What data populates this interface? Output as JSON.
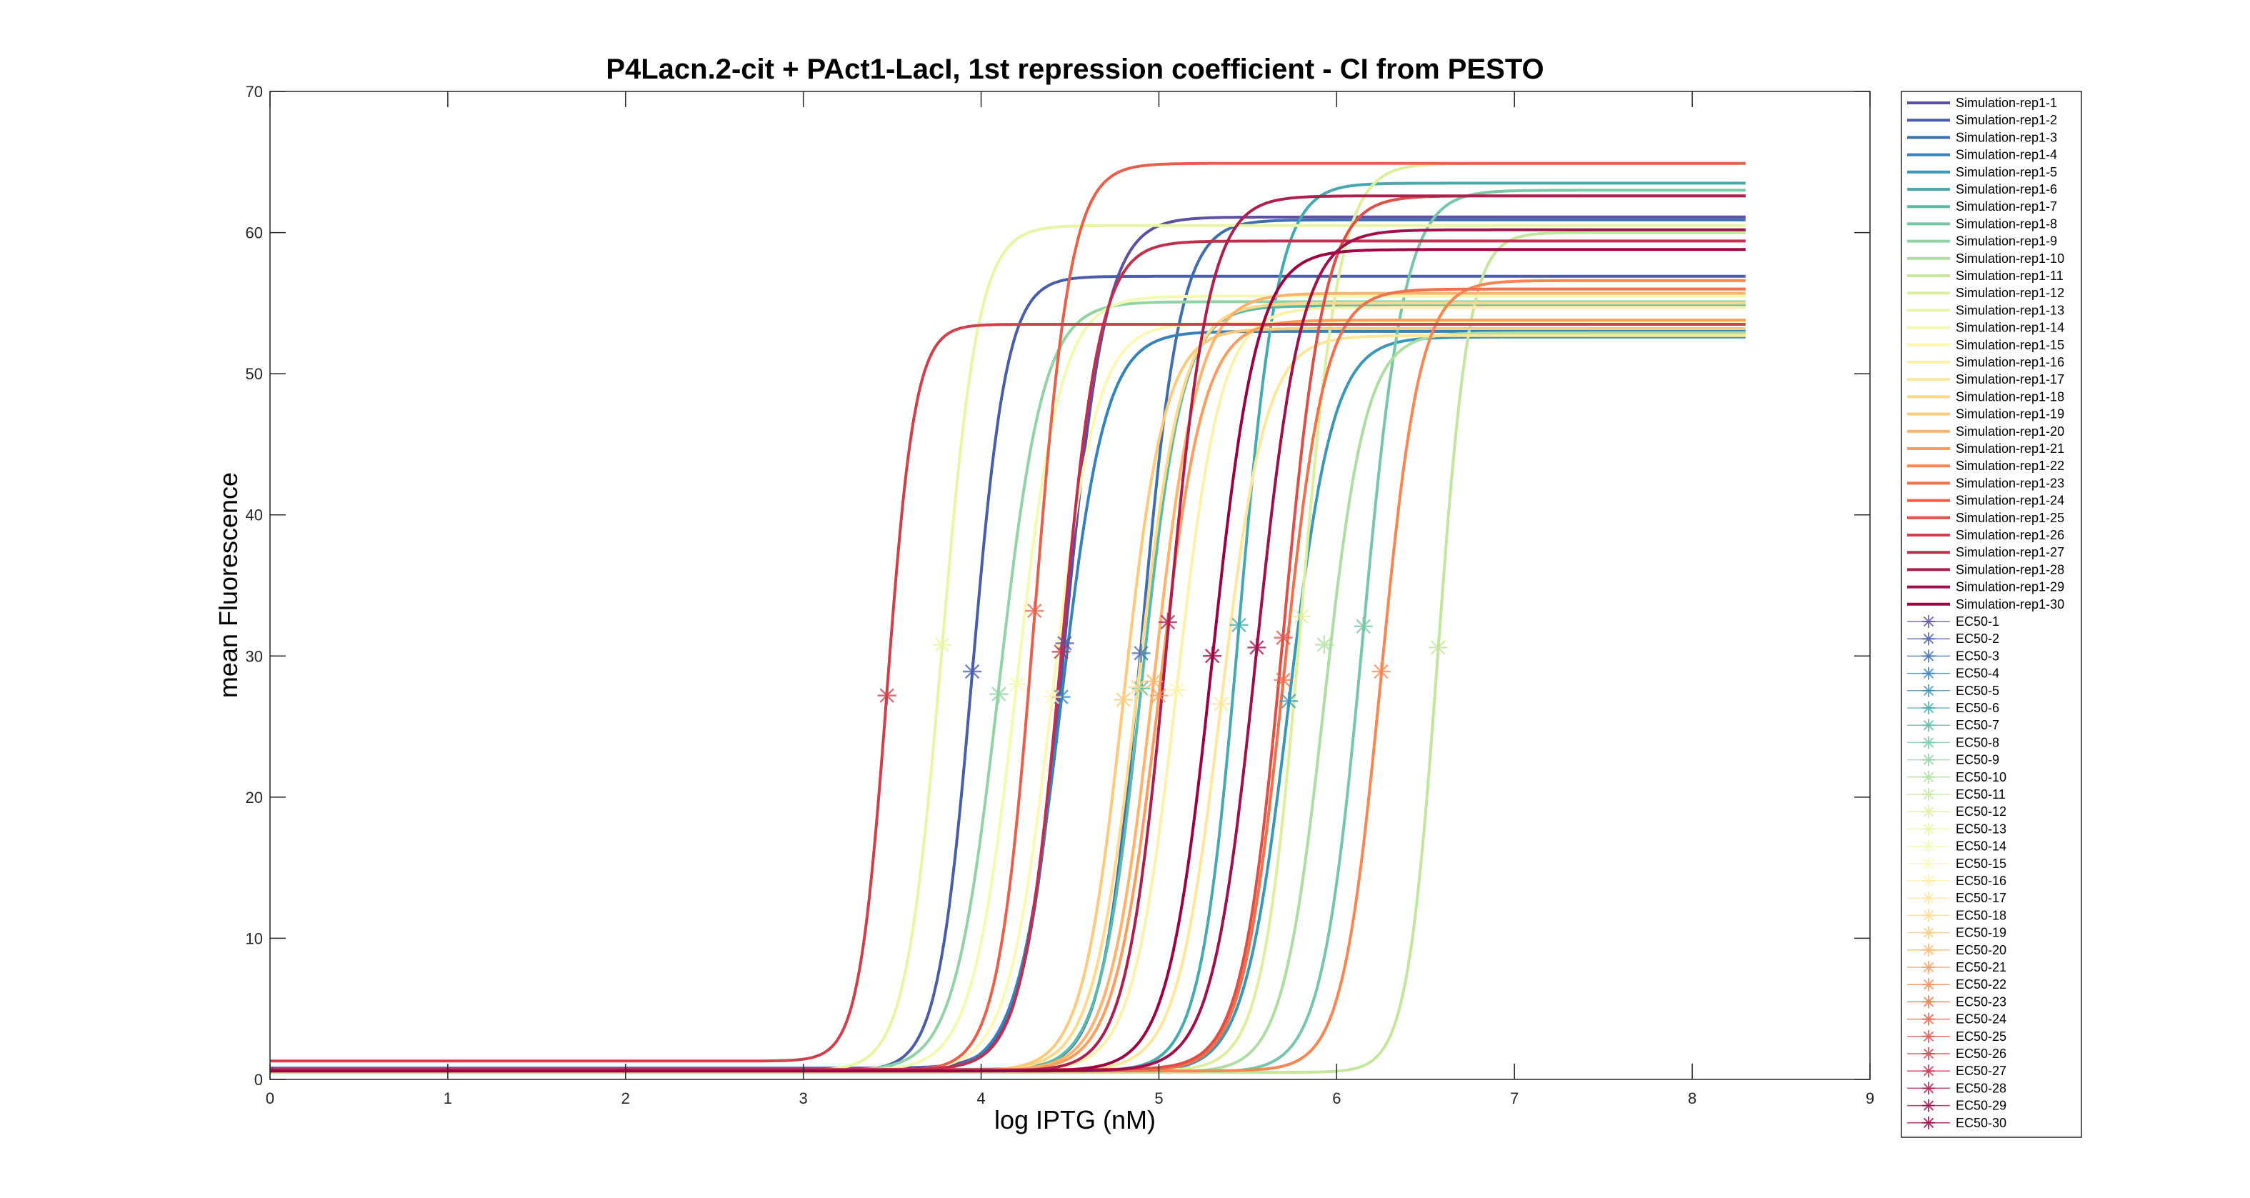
{
  "chart_data": {
    "type": "line",
    "title": "P4Lacn.2-cit + PAct1-LacI, 1st repression coefficient - CI from PESTO",
    "xlabel": "log IPTG (nM)",
    "ylabel": "mean Fluorescence",
    "xlim": [
      0,
      9
    ],
    "ylim": [
      0,
      70
    ],
    "xticks": [
      0,
      1,
      2,
      3,
      4,
      5,
      6,
      7,
      8,
      9
    ],
    "yticks": [
      0,
      10,
      20,
      30,
      40,
      50,
      60,
      70
    ],
    "grid": false,
    "legend_position": "outside-right",
    "x_max_curve": 8.3,
    "series": [
      {
        "name": "Simulation-rep1-1",
        "color": "#5e4fa2",
        "base": 0.8,
        "top": 61.1,
        "ec50": 4.47,
        "hill": 7.5
      },
      {
        "name": "Simulation-rep1-2",
        "color": "#4a5da9",
        "base": 0.6,
        "top": 56.9,
        "ec50": 3.95,
        "hill": 9.0
      },
      {
        "name": "Simulation-rep1-3",
        "color": "#3d6eb0",
        "base": 0.7,
        "top": 60.9,
        "ec50": 4.9,
        "hill": 8.0
      },
      {
        "name": "Simulation-rep1-4",
        "color": "#3682ba",
        "base": 0.5,
        "top": 53.0,
        "ec50": 4.45,
        "hill": 7.0
      },
      {
        "name": "Simulation-rep1-5",
        "color": "#3a97b8",
        "base": 0.5,
        "top": 52.6,
        "ec50": 5.73,
        "hill": 7.0
      },
      {
        "name": "Simulation-rep1-6",
        "color": "#44aab0",
        "base": 0.6,
        "top": 63.5,
        "ec50": 5.45,
        "hill": 8.0
      },
      {
        "name": "Simulation-rep1-7",
        "color": "#5bbaa5",
        "base": 0.6,
        "top": 54.8,
        "ec50": 4.9,
        "hill": 7.5
      },
      {
        "name": "Simulation-rep1-8",
        "color": "#75c7a5",
        "base": 0.5,
        "top": 63.0,
        "ec50": 6.15,
        "hill": 7.5
      },
      {
        "name": "Simulation-rep1-9",
        "color": "#91d3a4",
        "base": 0.6,
        "top": 55.1,
        "ec50": 4.1,
        "hill": 7.0
      },
      {
        "name": "Simulation-rep1-10",
        "color": "#addda0",
        "base": 0.5,
        "top": 52.9,
        "ec50": 5.93,
        "hill": 7.5
      },
      {
        "name": "Simulation-rep1-11",
        "color": "#c4e69c",
        "base": 0.5,
        "top": 60.0,
        "ec50": 6.57,
        "hill": 10.0
      },
      {
        "name": "Simulation-rep1-12",
        "color": "#dbef9d",
        "base": 0.6,
        "top": 64.9,
        "ec50": 5.8,
        "hill": 8.0
      },
      {
        "name": "Simulation-rep1-13",
        "color": "#e8f5a3",
        "base": 0.6,
        "top": 60.5,
        "ec50": 3.78,
        "hill": 8.5
      },
      {
        "name": "Simulation-rep1-14",
        "color": "#f3f9b0",
        "base": 0.6,
        "top": 55.5,
        "ec50": 4.2,
        "hill": 7.0
      },
      {
        "name": "Simulation-rep1-15",
        "color": "#fbf8b4",
        "base": 0.6,
        "top": 53.6,
        "ec50": 4.4,
        "hill": 7.0
      },
      {
        "name": "Simulation-rep1-16",
        "color": "#fdf0a8",
        "base": 0.6,
        "top": 54.7,
        "ec50": 5.1,
        "hill": 7.0
      },
      {
        "name": "Simulation-rep1-17",
        "color": "#fee69a",
        "base": 0.6,
        "top": 52.7,
        "ec50": 5.35,
        "hill": 7.0
      },
      {
        "name": "Simulation-rep1-18",
        "color": "#fed98a",
        "base": 0.6,
        "top": 55.0,
        "ec50": 4.88,
        "hill": 7.0
      },
      {
        "name": "Simulation-rep1-19",
        "color": "#fdc97a",
        "base": 0.6,
        "top": 53.2,
        "ec50": 4.8,
        "hill": 7.5
      },
      {
        "name": "Simulation-rep1-20",
        "color": "#fdb36b",
        "base": 0.6,
        "top": 55.7,
        "ec50": 4.97,
        "hill": 7.0
      },
      {
        "name": "Simulation-rep1-21",
        "color": "#fb9d5e",
        "base": 0.6,
        "top": 53.8,
        "ec50": 5.0,
        "hill": 7.0
      },
      {
        "name": "Simulation-rep1-22",
        "color": "#f88653",
        "base": 0.6,
        "top": 56.6,
        "ec50": 6.25,
        "hill": 8.0
      },
      {
        "name": "Simulation-rep1-23",
        "color": "#f2704b",
        "base": 0.6,
        "top": 56.0,
        "ec50": 5.7,
        "hill": 7.5
      },
      {
        "name": "Simulation-rep1-24",
        "color": "#e9604a",
        "base": 0.6,
        "top": 64.9,
        "ec50": 4.3,
        "hill": 8.5
      },
      {
        "name": "Simulation-rep1-25",
        "color": "#dd5049",
        "base": 0.7,
        "top": 62.6,
        "ec50": 5.7,
        "hill": 7.5
      },
      {
        "name": "Simulation-rep1-26",
        "color": "#d0404c",
        "base": 1.3,
        "top": 53.5,
        "ec50": 3.47,
        "hill": 11.0
      },
      {
        "name": "Simulation-rep1-27",
        "color": "#c02f4d",
        "base": 0.7,
        "top": 59.4,
        "ec50": 4.45,
        "hill": 8.0
      },
      {
        "name": "Simulation-rep1-28",
        "color": "#ad1f4c",
        "base": 0.6,
        "top": 62.6,
        "ec50": 5.05,
        "hill": 7.5
      },
      {
        "name": "Simulation-rep1-29",
        "color": "#a0104a",
        "base": 0.6,
        "top": 60.2,
        "ec50": 5.55,
        "hill": 7.0
      },
      {
        "name": "Simulation-rep1-30",
        "color": "#9e0142",
        "base": 0.6,
        "top": 58.8,
        "ec50": 5.3,
        "hill": 7.0
      }
    ],
    "ec50_markers": [
      {
        "name": "EC50-1",
        "color": "#5e4fa2",
        "x": 4.47,
        "y": 30.9
      },
      {
        "name": "EC50-2",
        "color": "#4a5da9",
        "x": 3.95,
        "y": 28.9
      },
      {
        "name": "EC50-3",
        "color": "#3d6eb0",
        "x": 4.9,
        "y": 30.2
      },
      {
        "name": "EC50-4",
        "color": "#3682ba",
        "x": 4.45,
        "y": 27.1
      },
      {
        "name": "EC50-5",
        "color": "#3a97b8",
        "x": 5.73,
        "y": 26.8
      },
      {
        "name": "EC50-6",
        "color": "#44aab0",
        "x": 5.45,
        "y": 32.2
      },
      {
        "name": "EC50-7",
        "color": "#5bbaa5",
        "x": 4.9,
        "y": 27.7
      },
      {
        "name": "EC50-8",
        "color": "#75c7a5",
        "x": 6.15,
        "y": 32.1
      },
      {
        "name": "EC50-9",
        "color": "#91d3a4",
        "x": 4.1,
        "y": 27.3
      },
      {
        "name": "EC50-10",
        "color": "#addda0",
        "x": 5.93,
        "y": 30.8
      },
      {
        "name": "EC50-11",
        "color": "#c4e69c",
        "x": 6.57,
        "y": 30.6
      },
      {
        "name": "EC50-12",
        "color": "#dbef9d",
        "x": 5.8,
        "y": 32.8
      },
      {
        "name": "EC50-13",
        "color": "#e8f5a3",
        "x": 3.78,
        "y": 30.8
      },
      {
        "name": "EC50-14",
        "color": "#f3f9b0",
        "x": 4.2,
        "y": 28.0
      },
      {
        "name": "EC50-15",
        "color": "#fbf8b4",
        "x": 4.4,
        "y": 27.1
      },
      {
        "name": "EC50-16",
        "color": "#fdf0a8",
        "x": 5.1,
        "y": 27.6
      },
      {
        "name": "EC50-17",
        "color": "#fee69a",
        "x": 5.35,
        "y": 26.6
      },
      {
        "name": "EC50-18",
        "color": "#fed98a",
        "x": 4.88,
        "y": 27.8
      },
      {
        "name": "EC50-19",
        "color": "#fdc97a",
        "x": 4.8,
        "y": 26.9
      },
      {
        "name": "EC50-20",
        "color": "#fdb36b",
        "x": 4.97,
        "y": 28.2
      },
      {
        "name": "EC50-21",
        "color": "#fb9d5e",
        "x": 5.0,
        "y": 27.2
      },
      {
        "name": "EC50-22",
        "color": "#f88653",
        "x": 6.25,
        "y": 28.9
      },
      {
        "name": "EC50-23",
        "color": "#f2704b",
        "x": 5.7,
        "y": 28.3
      },
      {
        "name": "EC50-24",
        "color": "#e9604a",
        "x": 4.3,
        "y": 33.2
      },
      {
        "name": "EC50-25",
        "color": "#dd5049",
        "x": 5.7,
        "y": 31.3
      },
      {
        "name": "EC50-26",
        "color": "#d0404c",
        "x": 3.47,
        "y": 27.2
      },
      {
        "name": "EC50-27",
        "color": "#c02f4d",
        "x": 4.45,
        "y": 30.3
      },
      {
        "name": "EC50-28",
        "color": "#ad1f4c",
        "x": 5.05,
        "y": 32.4
      },
      {
        "name": "EC50-29",
        "color": "#a0104a",
        "x": 5.55,
        "y": 30.6
      },
      {
        "name": "EC50-30",
        "color": "#9e0142",
        "x": 5.3,
        "y": 30.0
      }
    ]
  }
}
